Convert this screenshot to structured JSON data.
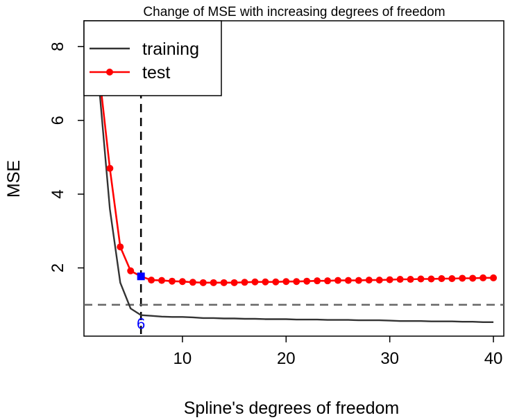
{
  "chart_data": {
    "type": "line",
    "title": "Change of MSE with increasing degrees of freedom",
    "xlabel": "Spline's degrees of freedom",
    "ylabel": "MSE",
    "xlim": [
      0.5,
      41
    ],
    "ylim": [
      0.15,
      8.7
    ],
    "xticks": [
      10,
      20,
      30,
      40
    ],
    "yticks": [
      2,
      4,
      6,
      8
    ],
    "grid": false,
    "legend_position": "top-left",
    "series": [
      {
        "name": "training",
        "color": "#333333",
        "marker": "none",
        "x": [
          1,
          2,
          3,
          4,
          5,
          6,
          7,
          8,
          9,
          10,
          11,
          12,
          13,
          14,
          15,
          16,
          17,
          18,
          19,
          20,
          21,
          22,
          23,
          24,
          25,
          26,
          27,
          28,
          29,
          30,
          31,
          32,
          33,
          34,
          35,
          36,
          37,
          38,
          39,
          40
        ],
        "values": [
          12,
          6.8,
          3.6,
          1.6,
          0.9,
          0.72,
          0.7,
          0.68,
          0.67,
          0.67,
          0.66,
          0.64,
          0.64,
          0.63,
          0.63,
          0.62,
          0.62,
          0.61,
          0.61,
          0.61,
          0.6,
          0.6,
          0.6,
          0.59,
          0.59,
          0.59,
          0.58,
          0.58,
          0.58,
          0.57,
          0.56,
          0.56,
          0.56,
          0.55,
          0.55,
          0.55,
          0.54,
          0.54,
          0.53,
          0.53
        ]
      },
      {
        "name": "test",
        "color": "#ff0000",
        "marker": "circle",
        "x": [
          1,
          2,
          3,
          4,
          5,
          6,
          7,
          8,
          9,
          10,
          11,
          12,
          13,
          14,
          15,
          16,
          17,
          18,
          19,
          20,
          21,
          22,
          23,
          24,
          25,
          26,
          27,
          28,
          29,
          30,
          31,
          32,
          33,
          34,
          35,
          36,
          37,
          38,
          39,
          40
        ],
        "values": [
          12,
          7.2,
          4.7,
          2.57,
          1.92,
          1.77,
          1.67,
          1.66,
          1.64,
          1.63,
          1.61,
          1.6,
          1.6,
          1.6,
          1.6,
          1.61,
          1.62,
          1.62,
          1.62,
          1.63,
          1.63,
          1.64,
          1.65,
          1.65,
          1.66,
          1.66,
          1.66,
          1.67,
          1.67,
          1.68,
          1.69,
          1.69,
          1.7,
          1.7,
          1.71,
          1.71,
          1.72,
          1.72,
          1.73,
          1.73
        ]
      }
    ],
    "reference_lines": [
      {
        "orientation": "vertical",
        "value": 6,
        "color": "#000000",
        "style": "dashed"
      },
      {
        "orientation": "horizontal",
        "value": 1,
        "color": "#666666",
        "style": "dashed"
      }
    ],
    "highlight": {
      "x": 6,
      "y": 1.77,
      "color": "#0000ff",
      "marker": "square"
    },
    "annotation": {
      "text": "6",
      "x": 6,
      "y": 0.35,
      "color": "#0000ff"
    }
  }
}
